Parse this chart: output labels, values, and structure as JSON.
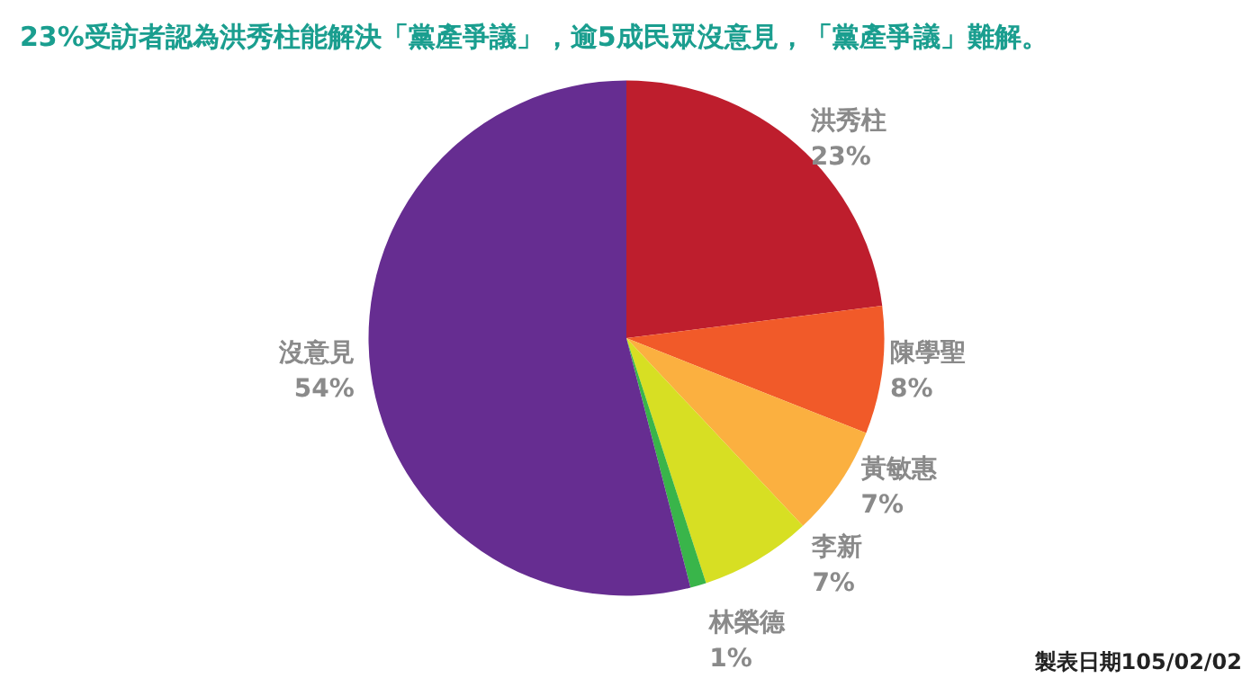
{
  "chart_data": {
    "type": "pie",
    "title": "23%受訪者認為洪秀柱能解決「黨產爭議」，逾5成民眾沒意見，「黨產爭議」難解。",
    "categories": [
      "洪秀柱",
      "陳學聖",
      "黃敏惠",
      "李新",
      "林榮德",
      "沒意見"
    ],
    "values": [
      23,
      8,
      7,
      7,
      1,
      54
    ],
    "value_labels": [
      "23%",
      "8%",
      "7%",
      "7%",
      "1%",
      "54%"
    ],
    "colors": [
      "#be1e2d",
      "#f15a29",
      "#fbb040",
      "#d7df23",
      "#39b54a",
      "#662d91"
    ],
    "annotations": [
      "製表日期105/02/02"
    ]
  }
}
